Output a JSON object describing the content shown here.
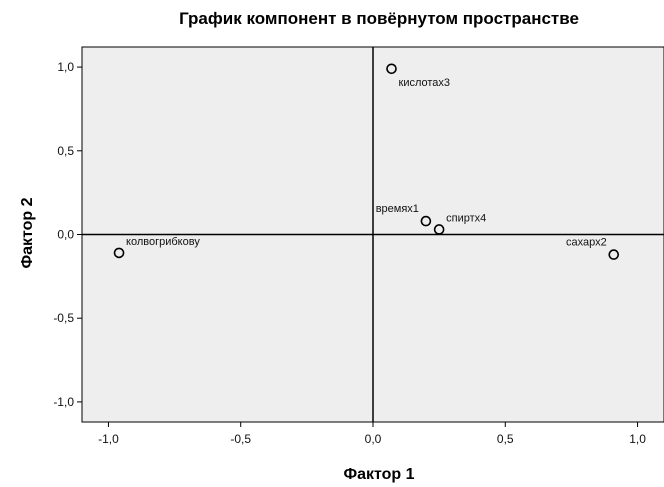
{
  "chart_data": {
    "type": "scatter",
    "title": "График компонент в повёрнутом пространстве",
    "xlabel": "Фактор 1",
    "ylabel": "Фактор 2",
    "xlim": [
      -1.1,
      1.1
    ],
    "ylim": [
      -1.12,
      1.12
    ],
    "x_ticks": [
      -1.0,
      -0.5,
      0.0,
      0.5,
      1.0
    ],
    "x_tick_labels": [
      "-1,0",
      "-0,5",
      "0,0",
      "0,5",
      "1,0"
    ],
    "y_ticks": [
      1.0,
      0.5,
      0.0,
      -0.5,
      -1.0
    ],
    "y_tick_labels": [
      "1,0",
      "0,5",
      "0,0",
      "-0,5",
      "-1,0"
    ],
    "reference_lines": {
      "x0": true,
      "y0": true
    },
    "grid": false,
    "background": "#eeeeee",
    "points": [
      {
        "label": "кислотах3",
        "x": 0.07,
        "y": 0.99,
        "label_pos": "below-right"
      },
      {
        "label": "времях1",
        "x": 0.2,
        "y": 0.08,
        "label_pos": "above-left"
      },
      {
        "label": "спиртх4",
        "x": 0.25,
        "y": 0.03,
        "label_pos": "above-right"
      },
      {
        "label": "сахарх2",
        "x": 0.91,
        "y": -0.12,
        "label_pos": "above-left"
      },
      {
        "label": "колвогрибкову",
        "x": -0.96,
        "y": -0.11,
        "label_pos": "above-right"
      }
    ]
  }
}
